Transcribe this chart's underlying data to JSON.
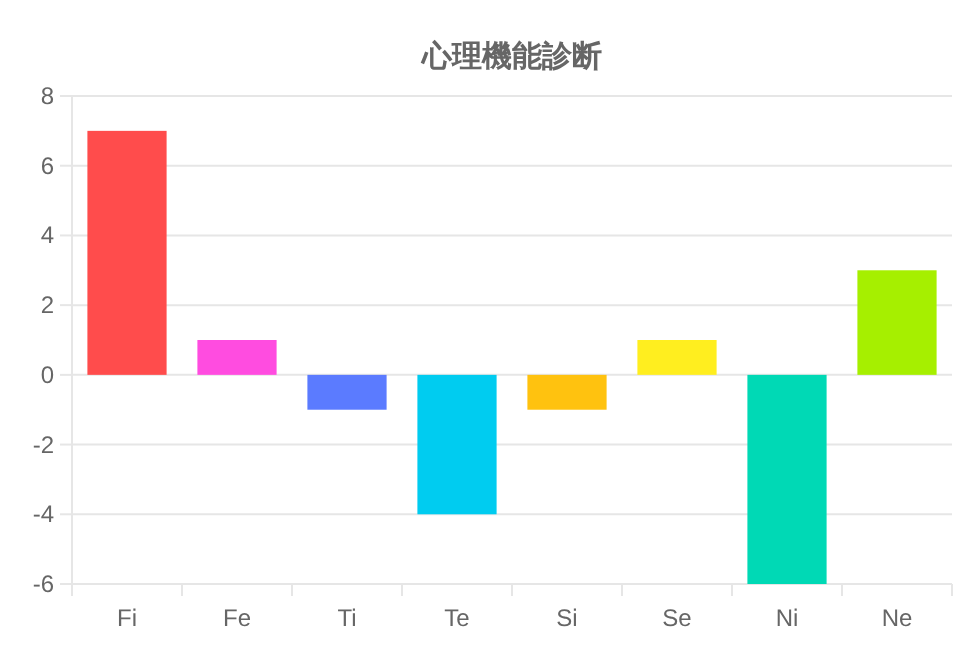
{
  "chart_data": {
    "type": "bar",
    "title": "心理機能診断",
    "categories": [
      "Fi",
      "Fe",
      "Ti",
      "Te",
      "Si",
      "Se",
      "Ni",
      "Ne"
    ],
    "values": [
      7,
      1,
      -1,
      -4,
      -1,
      1,
      -6,
      3
    ],
    "colors": [
      "#ff4c4c",
      "#ff4ce0",
      "#5b7bff",
      "#00ccf0",
      "#ffc20f",
      "#ffee1f",
      "#00d9b5",
      "#a6ef00"
    ],
    "ylim": [
      -6,
      8
    ],
    "yticks": [
      -6,
      -4,
      -2,
      0,
      2,
      4,
      6,
      8
    ],
    "grid": "y"
  }
}
